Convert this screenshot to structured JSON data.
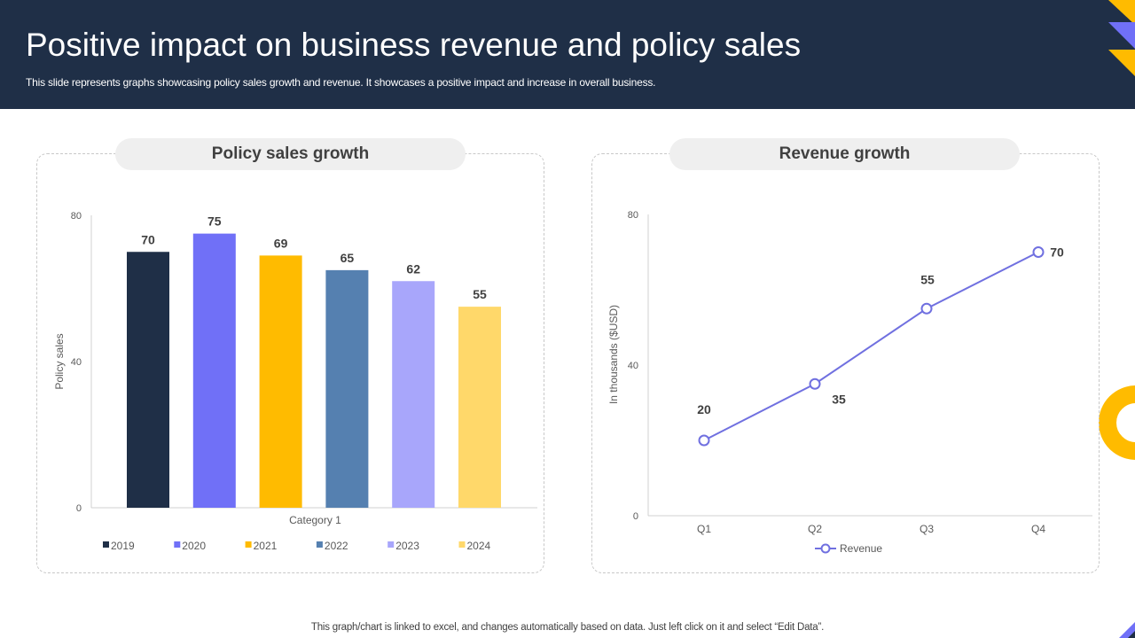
{
  "header": {
    "title": "Positive impact on business revenue and policy sales",
    "subtitle": "This slide represents graphs showcasing policy sales growth and revenue. It showcases a positive impact and increase in overall business."
  },
  "footer": {
    "note": "This graph/chart is linked to excel, and changes automatically based on data. Just left click on it and select “Edit Data”."
  },
  "panels": {
    "left_title": "Policy sales growth",
    "right_title": "Revenue growth"
  },
  "colors": {
    "header_bg": "#1f2f47",
    "accent_yellow": "#ffbb00",
    "accent_purple": "#7070f7"
  },
  "chart_data": [
    {
      "type": "bar",
      "title": "Policy sales growth",
      "xlabel": "Category 1",
      "ylabel": "Policy sales",
      "ylim": [
        0,
        80
      ],
      "yticks": [
        "0",
        "40",
        "80"
      ],
      "categories": [
        "Category 1"
      ],
      "series": [
        {
          "name": "2019",
          "value": 70,
          "label": "70",
          "color": "#1f2f47"
        },
        {
          "name": "2020",
          "value": 75,
          "label": "75",
          "color": "#7070f7"
        },
        {
          "name": "2021",
          "value": 69,
          "label": "69",
          "color": "#ffbb00"
        },
        {
          "name": "2022",
          "value": 65,
          "label": "65",
          "color": "#5580b0"
        },
        {
          "name": "2023",
          "value": 62,
          "label": "62",
          "color": "#a8a6fb"
        },
        {
          "name": "2024",
          "value": 55,
          "label": "55",
          "color": "#ffd86a"
        }
      ],
      "legend": "bottom"
    },
    {
      "type": "line",
      "title": "Revenue growth",
      "xlabel": "",
      "ylabel": "In thousands ($USD)",
      "ylim": [
        0,
        80
      ],
      "yticks": [
        "0",
        "40",
        "80"
      ],
      "categories": [
        "Q1",
        "Q2",
        "Q3",
        "Q4"
      ],
      "series": [
        {
          "name": "Revenue",
          "values": [
            20,
            35,
            55,
            70
          ],
          "labels": [
            "20",
            "35",
            "55",
            "70"
          ],
          "color": "#7070e0"
        }
      ],
      "legend": "bottom"
    }
  ]
}
